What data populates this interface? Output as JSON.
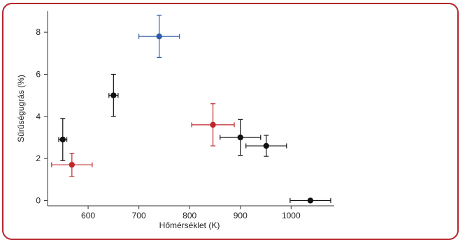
{
  "chart_data": {
    "type": "scatter",
    "xlabel": "Hőmérséklet (K)",
    "ylabel": "Sűrűségugrás (%)",
    "xlim": [
      520,
      1085
    ],
    "ylim": [
      -0.25,
      9
    ],
    "xticks": [
      600,
      700,
      800,
      900,
      1000
    ],
    "yticks": [
      0,
      2,
      4,
      6,
      8
    ],
    "colors": {
      "black": "#111111",
      "red": "#c0272d",
      "blue": "#2f5aa8"
    },
    "points": [
      {
        "x": 550,
        "y": 2.9,
        "xerr": 8,
        "yerr": 1.0,
        "color": "black"
      },
      {
        "x": 568,
        "y": 1.7,
        "xerr": 40,
        "yerr": 0.55,
        "color": "red"
      },
      {
        "x": 650,
        "y": 5.0,
        "xerr": 9,
        "yerr": 1.0,
        "color": "black"
      },
      {
        "x": 740,
        "y": 7.8,
        "xerr": 40,
        "yerr": 1.0,
        "color": "blue"
      },
      {
        "x": 846,
        "y": 3.6,
        "xerr": 42,
        "yerr": 1.0,
        "color": "red"
      },
      {
        "x": 900,
        "y": 3.0,
        "xerr": 40,
        "yerr": 0.85,
        "color": "black"
      },
      {
        "x": 951,
        "y": 2.6,
        "xerr": 40,
        "yerr": 0.5,
        "color": "black"
      },
      {
        "x": 1038,
        "y": 0.0,
        "xerr": 40,
        "yerr": 0,
        "color": "black"
      }
    ]
  }
}
